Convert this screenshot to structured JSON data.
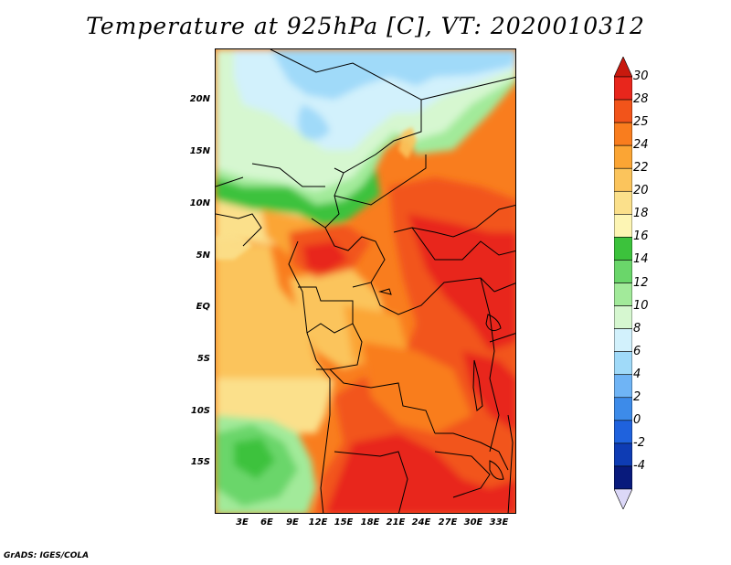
{
  "title": "Temperature at 925hPa [C], VT: 2020010312",
  "credit": "GrADS: IGES/COLA",
  "lat_labels": [
    "20N",
    "15N",
    "10N",
    "5N",
    "EQ",
    "5S",
    "10S",
    "15S"
  ],
  "lon_labels": [
    "3E",
    "6E",
    "9E",
    "12E",
    "15E",
    "18E",
    "21E",
    "24E",
    "27E",
    "30E",
    "33E"
  ],
  "colorbar": {
    "labels": [
      "30",
      "28",
      "25",
      "24",
      "22",
      "20",
      "18",
      "16",
      "14",
      "12",
      "10",
      "8",
      "6",
      "4",
      "2",
      "0",
      "-2",
      "-4"
    ],
    "colors": [
      "#e8261c",
      "#f2541a",
      "#f97d1e",
      "#fba534",
      "#fbc45c",
      "#fbe08b",
      "#fdf5b4",
      "#3cc23c",
      "#6ad66a",
      "#a2ea9a",
      "#d6f7d0",
      "#d2f1fc",
      "#a0daf9",
      "#6fb4f5",
      "#3d8be9",
      "#1f62dd",
      "#0e3cb4",
      "#081a7c"
    ],
    "top_color": "#c8190e",
    "bottom_color": "#dcd8f8"
  }
}
